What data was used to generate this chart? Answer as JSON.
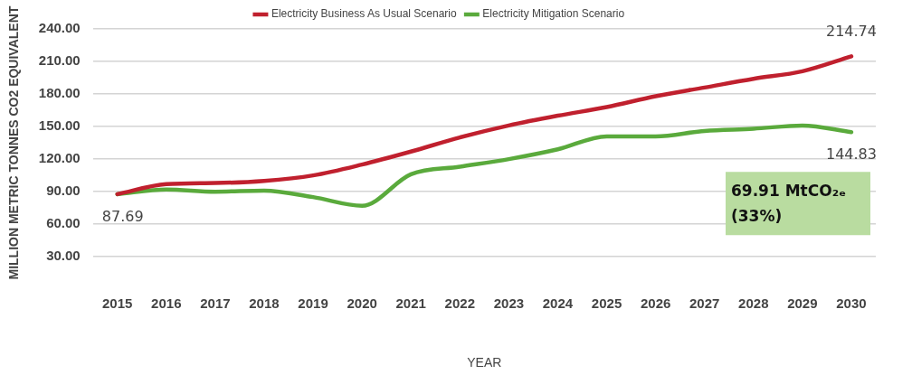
{
  "chart_data": {
    "type": "line",
    "xlabel": "YEAR",
    "ylabel": "MILLION METRIC TONNES CO2 EQUIVALENT",
    "categories": [
      "2015",
      "2016",
      "2017",
      "2018",
      "2019",
      "2020",
      "2021",
      "2022",
      "2023",
      "2024",
      "2025",
      "2026",
      "2027",
      "2028",
      "2029",
      "2030"
    ],
    "series": [
      {
        "name": "Electricity Business As Usual Scenario",
        "color": "#c0202e",
        "values": [
          87.69,
          97,
          98,
          100,
          105,
          115,
          127,
          140,
          151,
          160,
          168,
          178,
          186,
          194,
          201,
          214.74
        ]
      },
      {
        "name": "Electricity Mitigation Scenario",
        "color": "#5aaa3c",
        "values": [
          87.69,
          92,
          90,
          91,
          85,
          77,
          106,
          113,
          120,
          129,
          141,
          141,
          146,
          148,
          151,
          144.83
        ]
      }
    ],
    "ylim": [
      30,
      240
    ],
    "yticks": [
      {
        "value": 30,
        "label": "30.00"
      },
      {
        "value": 60,
        "label": "60.00"
      },
      {
        "value": 90,
        "label": "90.00"
      },
      {
        "value": 120,
        "label": "120.00"
      },
      {
        "value": 150,
        "label": "150.00"
      },
      {
        "value": 180,
        "label": "180.00"
      },
      {
        "value": 210,
        "label": "210.00"
      },
      {
        "value": 240,
        "label": "240.00"
      }
    ],
    "grid": "y",
    "legend": "top",
    "marker": "none",
    "line_style": "solid",
    "annotations": [
      {
        "text": "87.69",
        "x": "2015",
        "y": 87.69
      },
      {
        "text": "214.74",
        "x": "2030",
        "y": 214.74
      },
      {
        "text": "144.83",
        "x": "2030",
        "y": 144.83
      },
      "69.91 MtCO₂ₑ (33%)"
    ]
  }
}
